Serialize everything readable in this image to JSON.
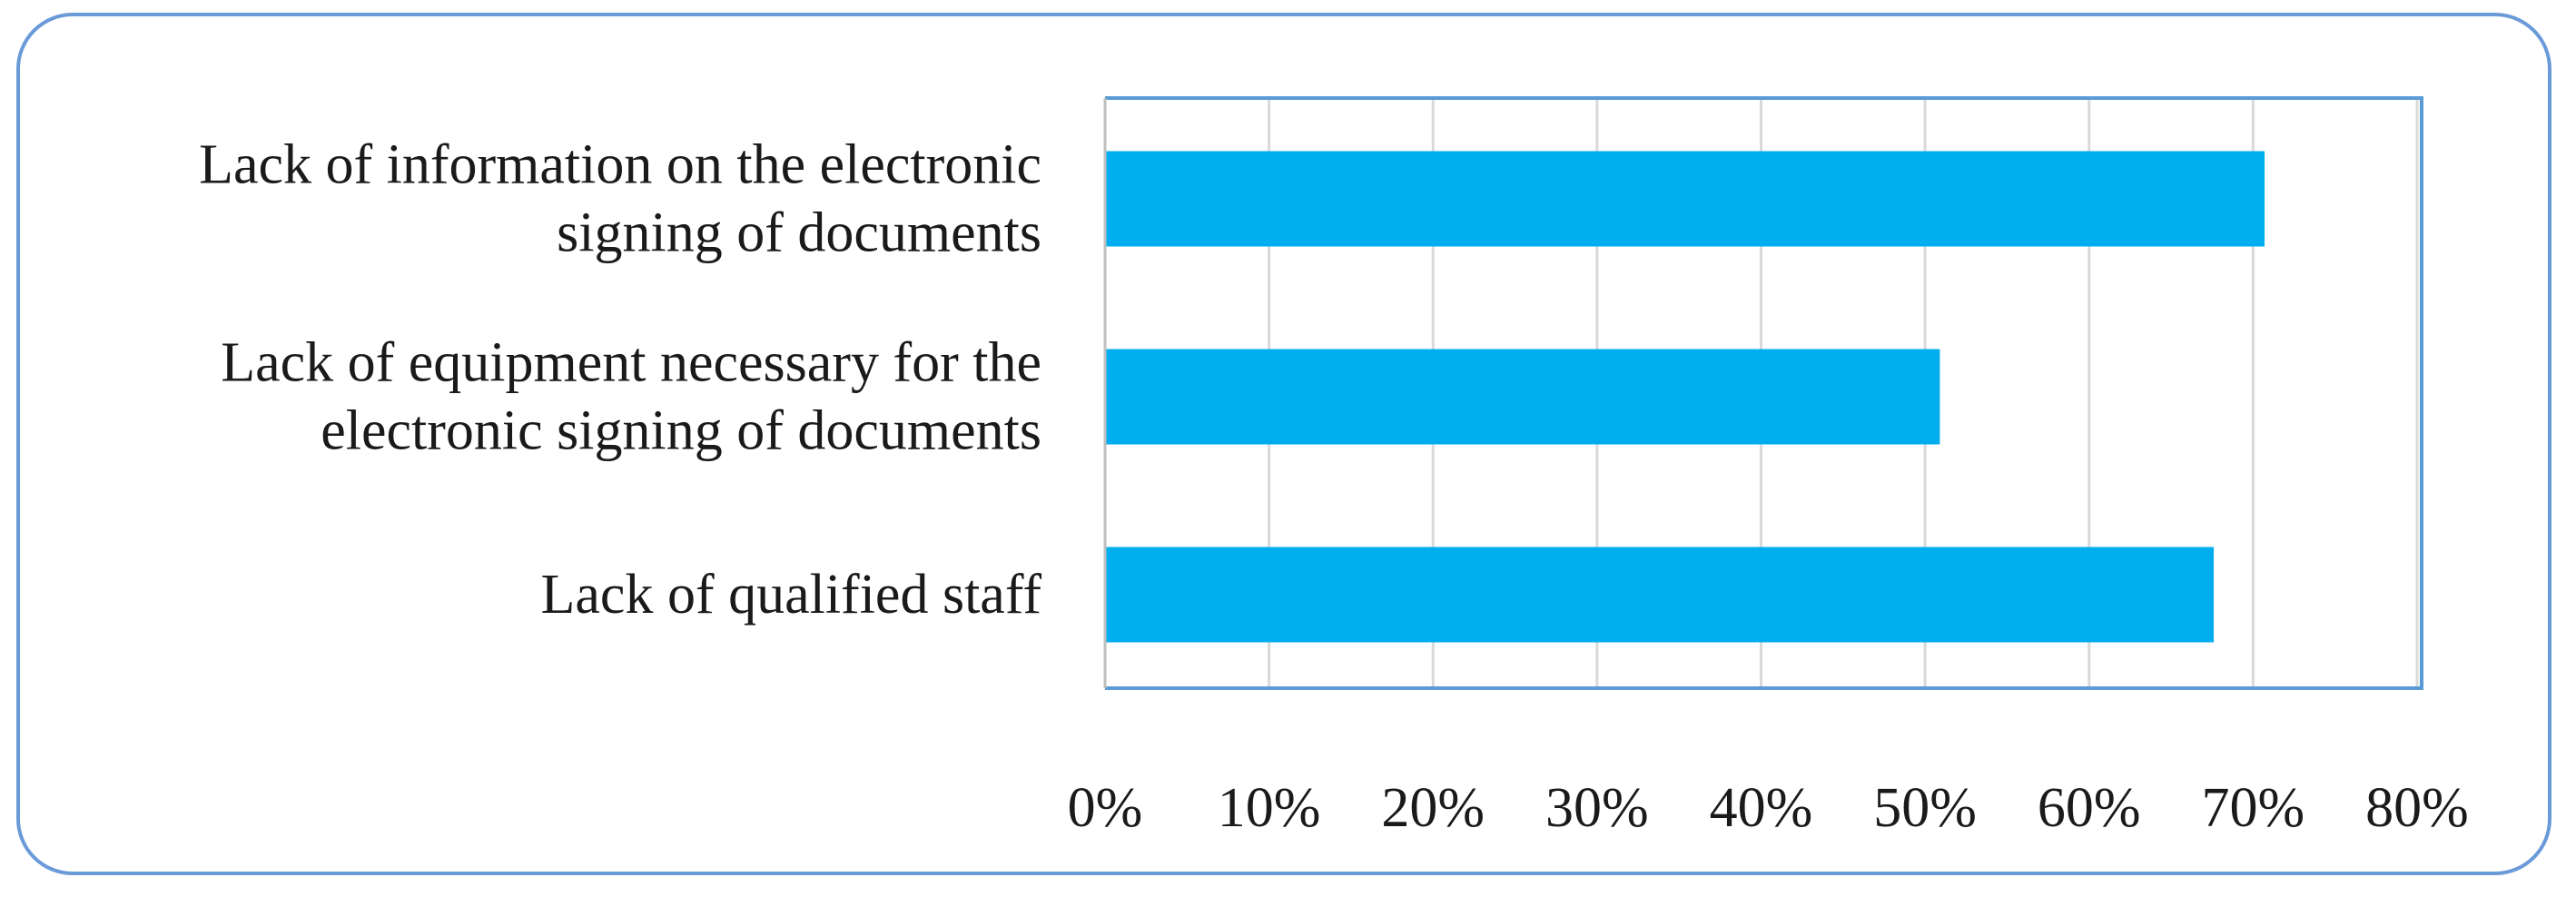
{
  "chart_data": {
    "type": "bar",
    "orientation": "horizontal",
    "title": "",
    "xlabel": "",
    "ylabel": "",
    "categories": [
      [
        "Lack of information on the electronic",
        "signing of documents"
      ],
      [
        "Lack of equipment necessary for the",
        "electronic signing of documents"
      ],
      [
        "Lack of qualified staff"
      ]
    ],
    "values": [
      70.7,
      50.9,
      67.6
    ],
    "xlim": [
      0,
      80
    ],
    "xticks": [
      0,
      10,
      20,
      30,
      40,
      50,
      60,
      70,
      80
    ],
    "tick_labels": [
      "0%",
      "10%",
      "20%",
      "30%",
      "40%",
      "50%",
      "60%",
      "70%",
      "80%"
    ],
    "grid": "vertical",
    "legend": "none",
    "colors": {
      "bar": "#00aeef",
      "grid": "#d9d9d9",
      "plot_border": "#5b9bd5",
      "frame_border": "#6a9bd8"
    }
  }
}
